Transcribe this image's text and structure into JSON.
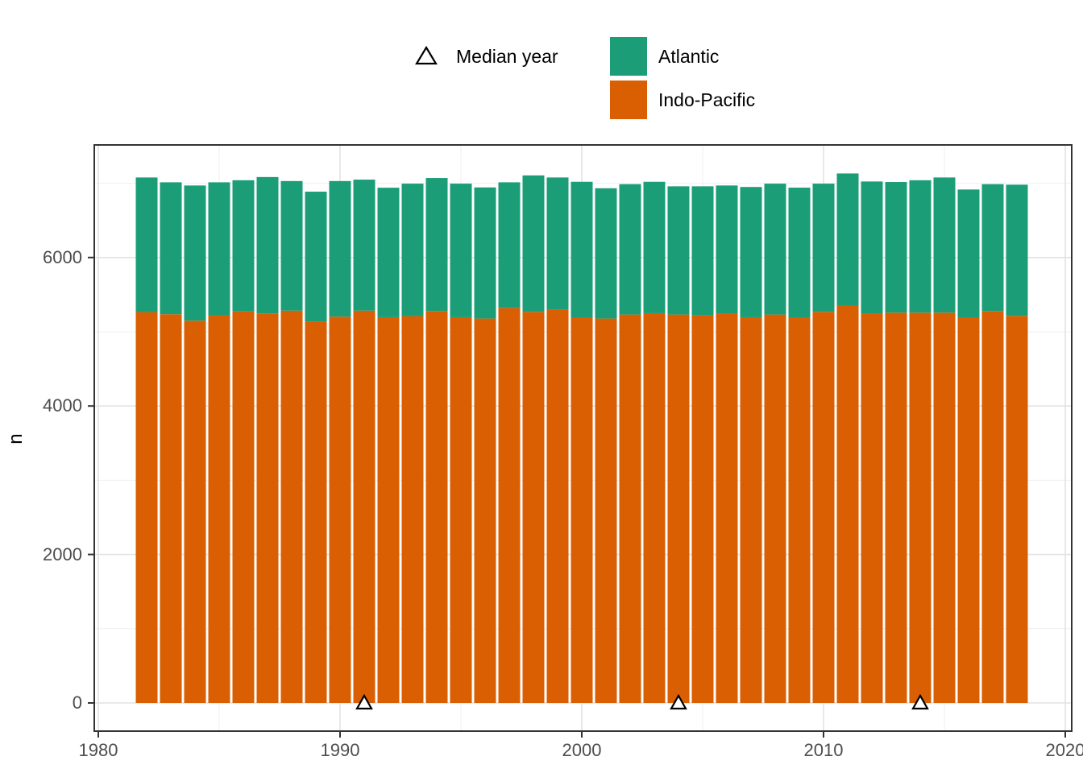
{
  "chart_data": {
    "type": "bar",
    "stacked": true,
    "title": "",
    "xlabel": "",
    "ylabel": "n",
    "x_tick_labels": [
      "1980",
      "1990",
      "2000",
      "2010",
      "2020"
    ],
    "x_tick_values": [
      1980,
      1990,
      2000,
      2010,
      2020
    ],
    "x_minor_values": [
      1985,
      1995,
      2005,
      2015
    ],
    "y_tick_labels": [
      "0",
      "2000",
      "4000",
      "6000"
    ],
    "y_tick_values": [
      0,
      2000,
      4000,
      6000
    ],
    "y_minor_values": [
      1000,
      3000,
      5000,
      7000
    ],
    "xlim": [
      1979.7,
      2020.3
    ],
    "ylim": [
      -380,
      7490
    ],
    "grid": true,
    "legend_position": "top",
    "bar_gap_years": 0.1,
    "categories": [
      1982,
      1983,
      1984,
      1985,
      1986,
      1987,
      1988,
      1989,
      1990,
      1991,
      1992,
      1993,
      1994,
      1995,
      1996,
      1997,
      1998,
      1999,
      2000,
      2001,
      2002,
      2003,
      2004,
      2005,
      2006,
      2007,
      2008,
      2009,
      2010,
      2011,
      2012,
      2013,
      2014,
      2015,
      2016,
      2017,
      2018
    ],
    "series": [
      {
        "name": "Atlantic",
        "color": "#1b9e77",
        "stack_order": "top",
        "values": [
          1813,
          1777,
          1821,
          1791,
          1768,
          1837,
          1746,
          1755,
          1827,
          1765,
          1744,
          1784,
          1792,
          1799,
          1766,
          1691,
          1838,
          1781,
          1835,
          1755,
          1756,
          1770,
          1727,
          1738,
          1727,
          1754,
          1763,
          1756,
          1727,
          1774,
          1781,
          1760,
          1784,
          1821,
          1731,
          1709,
          1767
        ]
      },
      {
        "name": "Indo-Pacific",
        "color": "#d95f02",
        "stack_order": "bottom",
        "values": [
          5265,
          5236,
          5149,
          5222,
          5273,
          5247,
          5284,
          5132,
          5203,
          5284,
          5196,
          5211,
          5279,
          5196,
          5178,
          5322,
          5268,
          5297,
          5185,
          5178,
          5232,
          5250,
          5232,
          5221,
          5243,
          5196,
          5232,
          5185,
          5268,
          5358,
          5243,
          5257,
          5257,
          5257,
          5185,
          5279,
          5214
        ]
      }
    ],
    "median_markers": {
      "label": "Median year",
      "symbol": "triangle-up-open",
      "years": [
        1991,
        2004,
        2014
      ]
    }
  },
  "legend": {
    "median_label": "Median year",
    "entries": [
      {
        "label": "Atlantic",
        "color": "#1b9e77"
      },
      {
        "label": "Indo-Pacific",
        "color": "#d95f02"
      }
    ]
  },
  "style": {
    "panel_border_color": "#333333",
    "grid_major_color": "#e2e2e2",
    "grid_minor_color": "#efefef",
    "tick_color": "#333333",
    "marker_fill": "#ffffff",
    "marker_stroke": "#000000"
  }
}
